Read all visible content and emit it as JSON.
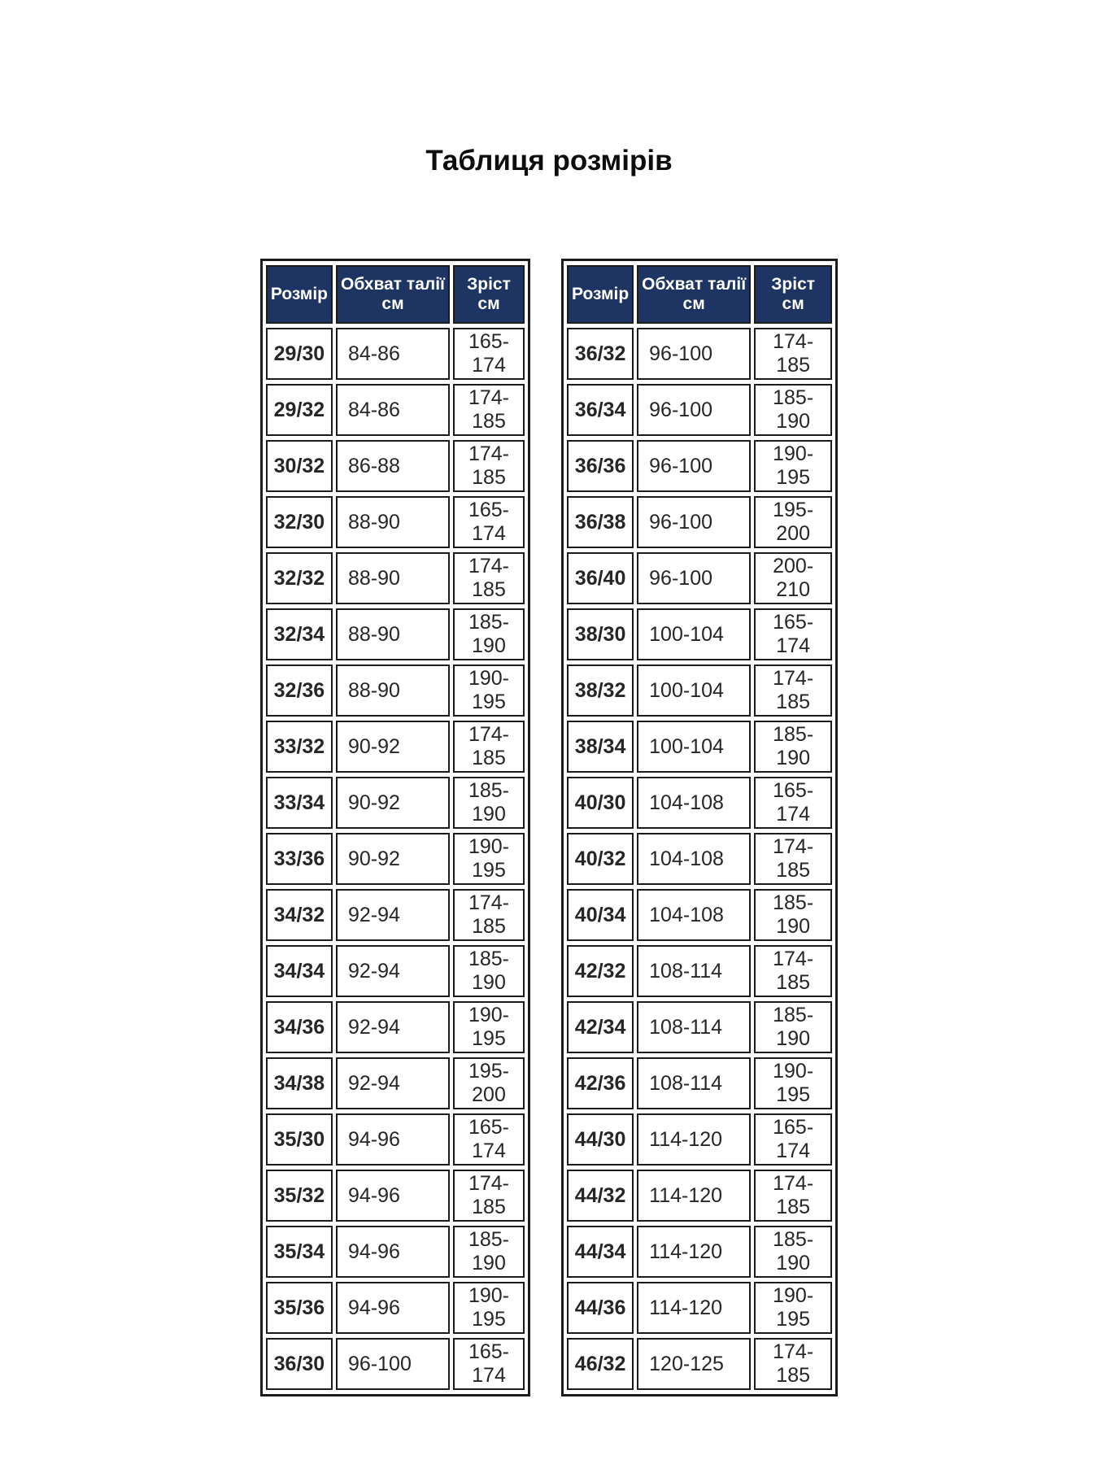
{
  "title": "Таблиця розмірів",
  "columns": {
    "size": "Розмір",
    "waist": "Обхват талії см",
    "height": "Зріст см"
  },
  "size_table_left": {
    "rows": [
      [
        "29/30",
        "84-86",
        "165-174"
      ],
      [
        "29/32",
        "84-86",
        "174-185"
      ],
      [
        "30/32",
        "86-88",
        "174-185"
      ],
      [
        "32/30",
        "88-90",
        "165-174"
      ],
      [
        "32/32",
        "88-90",
        "174-185"
      ],
      [
        "32/34",
        "88-90",
        "185-190"
      ],
      [
        "32/36",
        "88-90",
        "190-195"
      ],
      [
        "33/32",
        "90-92",
        "174-185"
      ],
      [
        "33/34",
        "90-92",
        "185-190"
      ],
      [
        "33/36",
        "90-92",
        "190-195"
      ],
      [
        "34/32",
        "92-94",
        "174-185"
      ],
      [
        "34/34",
        "92-94",
        "185-190"
      ],
      [
        "34/36",
        "92-94",
        "190-195"
      ],
      [
        "34/38",
        "92-94",
        "195-200"
      ],
      [
        "35/30",
        "94-96",
        "165-174"
      ],
      [
        "35/32",
        "94-96",
        "174-185"
      ],
      [
        "35/34",
        "94-96",
        "185-190"
      ],
      [
        "35/36",
        "94-96",
        "190-195"
      ],
      [
        "36/30",
        "96-100",
        "165-174"
      ]
    ]
  },
  "size_table_right": {
    "rows": [
      [
        "36/32",
        "96-100",
        "174-185"
      ],
      [
        "36/34",
        "96-100",
        "185-190"
      ],
      [
        "36/36",
        "96-100",
        "190-195"
      ],
      [
        "36/38",
        "96-100",
        "195-200"
      ],
      [
        "36/40",
        "96-100",
        "200-210"
      ],
      [
        "38/30",
        "100-104",
        "165-174"
      ],
      [
        "38/32",
        "100-104",
        "174-185"
      ],
      [
        "38/34",
        "100-104",
        "185-190"
      ],
      [
        "40/30",
        "104-108",
        "165-174"
      ],
      [
        "40/32",
        "104-108",
        "174-185"
      ],
      [
        "40/34",
        "104-108",
        "185-190"
      ],
      [
        "42/32",
        "108-114",
        "174-185"
      ],
      [
        "42/34",
        "108-114",
        "185-190"
      ],
      [
        "42/36",
        "108-114",
        "190-195"
      ],
      [
        "44/30",
        "114-120",
        "165-174"
      ],
      [
        "44/32",
        "114-120",
        "174-185"
      ],
      [
        "44/34",
        "114-120",
        "185-190"
      ],
      [
        "44/36",
        "114-120",
        "190-195"
      ],
      [
        "46/32",
        "120-125",
        "174-185"
      ]
    ]
  },
  "colors": {
    "header_bg": "#1e3563",
    "header_text": "#ffffff",
    "size_cell_bg": "#ffff00",
    "border": "#1c1c1c",
    "value_text": "#262626"
  }
}
